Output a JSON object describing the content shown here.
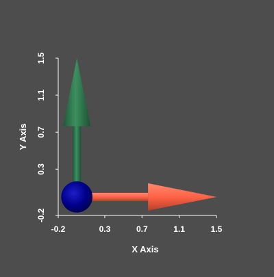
{
  "chart_data": {
    "type": "scatter",
    "title": "",
    "xlabel": "X Axis",
    "ylabel": "Y Axis",
    "xlim": [
      -0.2,
      1.5
    ],
    "ylim": [
      -0.2,
      1.5
    ],
    "x_ticks": [
      "-0.2",
      "0.3",
      "0.7",
      "1.1",
      "1.5"
    ],
    "y_ticks": [
      "-0.2",
      "0.3",
      "0.7",
      "1.1",
      "1.5"
    ],
    "grid": false,
    "background_color": "#4d4d4d",
    "axis_color": "#ffffff",
    "glyphs": [
      {
        "kind": "sphere",
        "color": "#00008b",
        "center": [
          0,
          0
        ],
        "radius": 0.12
      },
      {
        "kind": "arrow",
        "color": "#ff6347",
        "start": [
          0,
          0
        ],
        "end": [
          1.5,
          0
        ]
      },
      {
        "kind": "arrow",
        "color": "#2e8b57",
        "start": [
          0,
          0
        ],
        "end": [
          0,
          1.5
        ]
      }
    ]
  }
}
